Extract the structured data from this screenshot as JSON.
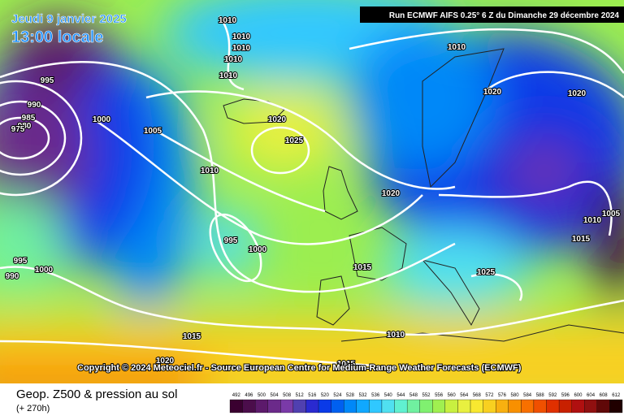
{
  "header": {
    "date": "Jeudi 9 janvier 2025",
    "time": "13:00 locale",
    "run": "Run ECMWF AIFS 0.25° 6 Z du Dimanche 29 décembre 2024"
  },
  "isobar_labels": [
    1010,
    1010,
    1010,
    1010,
    1010,
    995,
    990,
    985,
    980,
    975,
    1000,
    1005,
    1020,
    1025,
    1010,
    1010,
    1020,
    1020,
    1020,
    1010,
    1005,
    1015,
    995,
    1000,
    995,
    1000,
    990,
    1015,
    1025,
    1015,
    1010,
    1020,
    1015
  ],
  "copyright": "Copyright © 2024 Meteociel.fr - Source European Centre for Medium-Range Weather Forecasts (ECMWF)",
  "footer": {
    "title": "Geop. Z500 & pression au sol",
    "lead": "(+ 270h)"
  },
  "colorbar": {
    "labels": [
      492,
      496,
      500,
      504,
      508,
      512,
      516,
      520,
      524,
      528,
      532,
      536,
      540,
      544,
      548,
      552,
      556,
      560,
      564,
      568,
      572,
      576,
      580,
      584,
      588,
      592,
      596,
      600,
      604,
      608,
      612
    ],
    "colors": [
      "#3a0030",
      "#4b0d4b",
      "#5c1a6b",
      "#6b2a8a",
      "#7a3aa8",
      "#5040b0",
      "#2a2ad0",
      "#0a3ae8",
      "#0060f0",
      "#0088f8",
      "#10a8ff",
      "#30c8ff",
      "#50e0f0",
      "#60f0d0",
      "#70f0a0",
      "#80f070",
      "#a0f050",
      "#c8f040",
      "#e8f040",
      "#f8e830",
      "#f8d020",
      "#f8b010",
      "#f89000",
      "#f87000",
      "#f05000",
      "#e03000",
      "#c82000",
      "#b01010",
      "#901010",
      "#600808",
      "#200000"
    ]
  }
}
